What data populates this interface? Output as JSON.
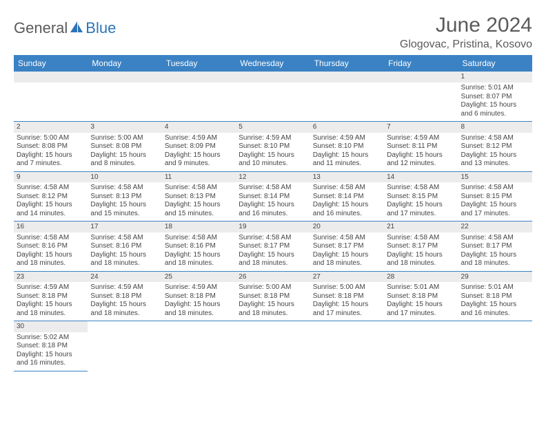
{
  "brand": {
    "part1": "General",
    "part2": "Blue"
  },
  "title": "June 2024",
  "location": "Glogovac, Pristina, Kosovo",
  "colors": {
    "header_bg": "#3b82c4",
    "header_text": "#ffffff",
    "daynum_bg": "#ececec",
    "border": "#3b82c4",
    "brand_gray": "#5a5a5a",
    "brand_blue": "#2d74b5"
  },
  "weekdays": [
    "Sunday",
    "Monday",
    "Tuesday",
    "Wednesday",
    "Thursday",
    "Friday",
    "Saturday"
  ],
  "weeks": [
    [
      {
        "n": "",
        "sr": "",
        "ss": "",
        "dl": ""
      },
      {
        "n": "",
        "sr": "",
        "ss": "",
        "dl": ""
      },
      {
        "n": "",
        "sr": "",
        "ss": "",
        "dl": ""
      },
      {
        "n": "",
        "sr": "",
        "ss": "",
        "dl": ""
      },
      {
        "n": "",
        "sr": "",
        "ss": "",
        "dl": ""
      },
      {
        "n": "",
        "sr": "",
        "ss": "",
        "dl": ""
      },
      {
        "n": "1",
        "sr": "Sunrise: 5:01 AM",
        "ss": "Sunset: 8:07 PM",
        "dl": "Daylight: 15 hours and 6 minutes."
      }
    ],
    [
      {
        "n": "2",
        "sr": "Sunrise: 5:00 AM",
        "ss": "Sunset: 8:08 PM",
        "dl": "Daylight: 15 hours and 7 minutes."
      },
      {
        "n": "3",
        "sr": "Sunrise: 5:00 AM",
        "ss": "Sunset: 8:08 PM",
        "dl": "Daylight: 15 hours and 8 minutes."
      },
      {
        "n": "4",
        "sr": "Sunrise: 4:59 AM",
        "ss": "Sunset: 8:09 PM",
        "dl": "Daylight: 15 hours and 9 minutes."
      },
      {
        "n": "5",
        "sr": "Sunrise: 4:59 AM",
        "ss": "Sunset: 8:10 PM",
        "dl": "Daylight: 15 hours and 10 minutes."
      },
      {
        "n": "6",
        "sr": "Sunrise: 4:59 AM",
        "ss": "Sunset: 8:10 PM",
        "dl": "Daylight: 15 hours and 11 minutes."
      },
      {
        "n": "7",
        "sr": "Sunrise: 4:59 AM",
        "ss": "Sunset: 8:11 PM",
        "dl": "Daylight: 15 hours and 12 minutes."
      },
      {
        "n": "8",
        "sr": "Sunrise: 4:58 AM",
        "ss": "Sunset: 8:12 PM",
        "dl": "Daylight: 15 hours and 13 minutes."
      }
    ],
    [
      {
        "n": "9",
        "sr": "Sunrise: 4:58 AM",
        "ss": "Sunset: 8:12 PM",
        "dl": "Daylight: 15 hours and 14 minutes."
      },
      {
        "n": "10",
        "sr": "Sunrise: 4:58 AM",
        "ss": "Sunset: 8:13 PM",
        "dl": "Daylight: 15 hours and 15 minutes."
      },
      {
        "n": "11",
        "sr": "Sunrise: 4:58 AM",
        "ss": "Sunset: 8:13 PM",
        "dl": "Daylight: 15 hours and 15 minutes."
      },
      {
        "n": "12",
        "sr": "Sunrise: 4:58 AM",
        "ss": "Sunset: 8:14 PM",
        "dl": "Daylight: 15 hours and 16 minutes."
      },
      {
        "n": "13",
        "sr": "Sunrise: 4:58 AM",
        "ss": "Sunset: 8:14 PM",
        "dl": "Daylight: 15 hours and 16 minutes."
      },
      {
        "n": "14",
        "sr": "Sunrise: 4:58 AM",
        "ss": "Sunset: 8:15 PM",
        "dl": "Daylight: 15 hours and 17 minutes."
      },
      {
        "n": "15",
        "sr": "Sunrise: 4:58 AM",
        "ss": "Sunset: 8:15 PM",
        "dl": "Daylight: 15 hours and 17 minutes."
      }
    ],
    [
      {
        "n": "16",
        "sr": "Sunrise: 4:58 AM",
        "ss": "Sunset: 8:16 PM",
        "dl": "Daylight: 15 hours and 18 minutes."
      },
      {
        "n": "17",
        "sr": "Sunrise: 4:58 AM",
        "ss": "Sunset: 8:16 PM",
        "dl": "Daylight: 15 hours and 18 minutes."
      },
      {
        "n": "18",
        "sr": "Sunrise: 4:58 AM",
        "ss": "Sunset: 8:16 PM",
        "dl": "Daylight: 15 hours and 18 minutes."
      },
      {
        "n": "19",
        "sr": "Sunrise: 4:58 AM",
        "ss": "Sunset: 8:17 PM",
        "dl": "Daylight: 15 hours and 18 minutes."
      },
      {
        "n": "20",
        "sr": "Sunrise: 4:58 AM",
        "ss": "Sunset: 8:17 PM",
        "dl": "Daylight: 15 hours and 18 minutes."
      },
      {
        "n": "21",
        "sr": "Sunrise: 4:58 AM",
        "ss": "Sunset: 8:17 PM",
        "dl": "Daylight: 15 hours and 18 minutes."
      },
      {
        "n": "22",
        "sr": "Sunrise: 4:58 AM",
        "ss": "Sunset: 8:17 PM",
        "dl": "Daylight: 15 hours and 18 minutes."
      }
    ],
    [
      {
        "n": "23",
        "sr": "Sunrise: 4:59 AM",
        "ss": "Sunset: 8:18 PM",
        "dl": "Daylight: 15 hours and 18 minutes."
      },
      {
        "n": "24",
        "sr": "Sunrise: 4:59 AM",
        "ss": "Sunset: 8:18 PM",
        "dl": "Daylight: 15 hours and 18 minutes."
      },
      {
        "n": "25",
        "sr": "Sunrise: 4:59 AM",
        "ss": "Sunset: 8:18 PM",
        "dl": "Daylight: 15 hours and 18 minutes."
      },
      {
        "n": "26",
        "sr": "Sunrise: 5:00 AM",
        "ss": "Sunset: 8:18 PM",
        "dl": "Daylight: 15 hours and 18 minutes."
      },
      {
        "n": "27",
        "sr": "Sunrise: 5:00 AM",
        "ss": "Sunset: 8:18 PM",
        "dl": "Daylight: 15 hours and 17 minutes."
      },
      {
        "n": "28",
        "sr": "Sunrise: 5:01 AM",
        "ss": "Sunset: 8:18 PM",
        "dl": "Daylight: 15 hours and 17 minutes."
      },
      {
        "n": "29",
        "sr": "Sunrise: 5:01 AM",
        "ss": "Sunset: 8:18 PM",
        "dl": "Daylight: 15 hours and 16 minutes."
      }
    ],
    [
      {
        "n": "30",
        "sr": "Sunrise: 5:02 AM",
        "ss": "Sunset: 8:18 PM",
        "dl": "Daylight: 15 hours and 16 minutes."
      },
      {
        "n": "",
        "sr": "",
        "ss": "",
        "dl": ""
      },
      {
        "n": "",
        "sr": "",
        "ss": "",
        "dl": ""
      },
      {
        "n": "",
        "sr": "",
        "ss": "",
        "dl": ""
      },
      {
        "n": "",
        "sr": "",
        "ss": "",
        "dl": ""
      },
      {
        "n": "",
        "sr": "",
        "ss": "",
        "dl": ""
      },
      {
        "n": "",
        "sr": "",
        "ss": "",
        "dl": ""
      }
    ]
  ]
}
